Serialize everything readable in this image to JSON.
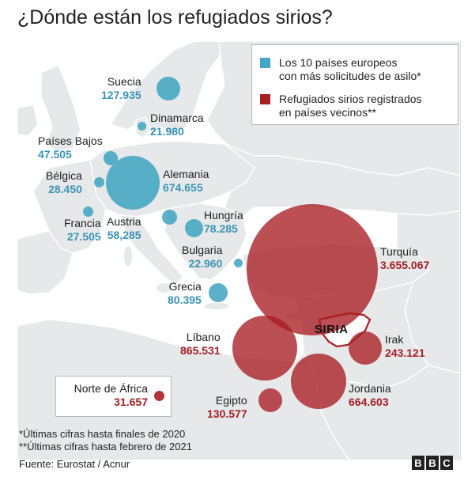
{
  "title": "¿Dónde están los refugiados sirios?",
  "legend": {
    "europe": {
      "label_1": "Los 10 países europeos",
      "label_2": "con más solicitudes de asilo*",
      "color": "#43a6c2"
    },
    "neighbours": {
      "label_1": "Refugiados sirios registrados",
      "label_2": "en países vecinos**",
      "color": "#a81e22"
    }
  },
  "countries": [
    {
      "name": "Suecia",
      "value": "127.935",
      "group": "europe",
      "numeric": 127935
    },
    {
      "name": "Dinamarca",
      "value": "21.980",
      "group": "europe",
      "numeric": 21980
    },
    {
      "name": "Países Bajos",
      "value": "47.505",
      "group": "europe",
      "numeric": 47505
    },
    {
      "name": "Bélgica",
      "value": "28.450",
      "group": "europe",
      "numeric": 28450
    },
    {
      "name": "Alemania",
      "value": "674.655",
      "group": "europe",
      "numeric": 674655
    },
    {
      "name": "Francia",
      "value": "27.505",
      "group": "europe",
      "numeric": 27505
    },
    {
      "name": "Austria",
      "value": "58,285",
      "group": "europe",
      "numeric": 58285
    },
    {
      "name": "Hungría",
      "value": "78.285",
      "group": "europe",
      "numeric": 78285
    },
    {
      "name": "Bulgaria",
      "value": "22.960",
      "group": "europe",
      "numeric": 22960
    },
    {
      "name": "Grecia",
      "value": "80.395",
      "group": "europe",
      "numeric": 80395
    },
    {
      "name": "Turquía",
      "value": "3.655.067",
      "group": "neighbours",
      "numeric": 3655067
    },
    {
      "name": "Líbano",
      "value": "865.531",
      "group": "neighbours",
      "numeric": 865531
    },
    {
      "name": "Irak",
      "value": "243.121",
      "group": "neighbours",
      "numeric": 243121
    },
    {
      "name": "Jordania",
      "value": "664.603",
      "group": "neighbours",
      "numeric": 664603
    },
    {
      "name": "Egipto",
      "value": "130.577",
      "group": "neighbours",
      "numeric": 130577
    },
    {
      "name": "Norte de África",
      "value": "31.657",
      "group": "neighbours",
      "numeric": 31657
    }
  ],
  "syria_label": "SIRIA",
  "notes": {
    "line_1": "*Últimas cifras hasta finales de 2020",
    "line_2": "**Últimas cifras hasta febrero de 2021"
  },
  "source": "Fuente: Eurostat / Acnur",
  "logo": "BBC"
}
